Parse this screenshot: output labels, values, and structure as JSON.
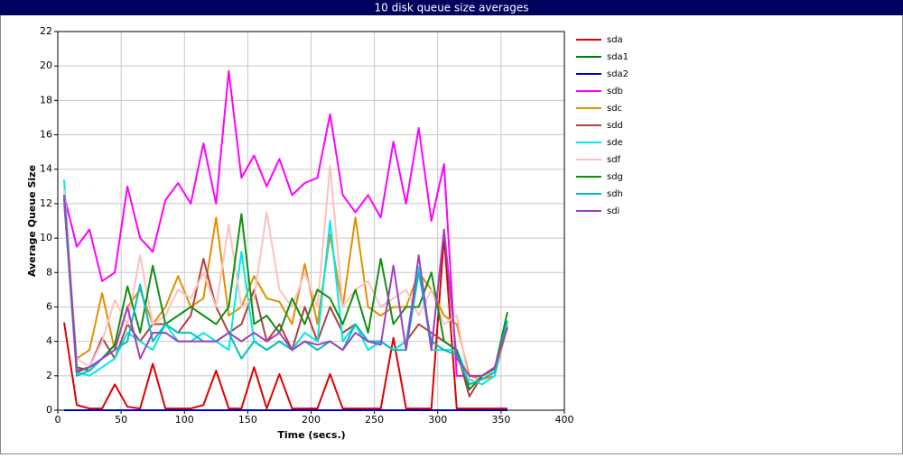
{
  "chart_data": {
    "type": "line",
    "title": "10 disk queue size averages",
    "xlabel": "Time (secs.)",
    "ylabel": "Average Queue Size",
    "x": [
      5,
      15,
      25,
      35,
      45,
      55,
      65,
      75,
      85,
      95,
      105,
      115,
      125,
      135,
      145,
      155,
      165,
      175,
      185,
      195,
      205,
      215,
      225,
      235,
      245,
      255,
      265,
      275,
      285,
      295,
      305,
      315,
      325,
      335,
      345,
      355
    ],
    "xlim": [
      0,
      400
    ],
    "xticks": [
      0,
      50,
      100,
      150,
      200,
      250,
      300,
      350,
      400
    ],
    "ylim": [
      0,
      22
    ],
    "yticks": [
      0,
      2,
      4,
      6,
      8,
      10,
      12,
      14,
      16,
      18,
      20,
      22
    ],
    "grid": true,
    "legend": "right",
    "series": [
      {
        "name": "sda",
        "color": "#dd0000",
        "values": [
          5.1,
          0.3,
          0.1,
          0.1,
          1.5,
          0.2,
          0.1,
          2.7,
          0.1,
          0.1,
          0.1,
          0.3,
          2.3,
          0.1,
          0.1,
          2.5,
          0.1,
          2.1,
          0.1,
          0.1,
          0.1,
          2.1,
          0.1,
          0.1,
          0.1,
          0.1,
          4.2,
          0.1,
          0.1,
          0.1,
          10.1,
          0.1,
          0.1,
          0.1,
          0.1,
          0.1
        ]
      },
      {
        "name": "sda1",
        "color": "#008000",
        "values": [
          0,
          0,
          0,
          0,
          0,
          0,
          0,
          0,
          0,
          0,
          0,
          0,
          0,
          0,
          0,
          0,
          0,
          0,
          0,
          0,
          0,
          0,
          0,
          0,
          0,
          0,
          0,
          0,
          0,
          0,
          0,
          0,
          0,
          0,
          0,
          0
        ]
      },
      {
        "name": "sda2",
        "color": "#0000c0",
        "values": [
          0,
          0,
          0,
          0,
          0,
          0,
          0,
          0,
          0,
          0,
          0,
          0,
          0,
          0,
          0,
          0,
          0,
          0,
          0,
          0,
          0,
          0,
          0,
          0,
          0,
          0,
          0,
          0,
          0,
          0,
          0,
          0,
          0,
          0,
          0,
          0
        ]
      },
      {
        "name": "sdb",
        "color": "#ff00ff",
        "values": [
          12.5,
          9.5,
          10.5,
          7.5,
          8,
          13,
          10,
          9.2,
          12.2,
          13.2,
          12,
          15.5,
          12,
          19.7,
          13.5,
          14.8,
          13,
          14.6,
          12.5,
          13.2,
          13.5,
          17.2,
          12.5,
          11.5,
          12.5,
          11.2,
          15.6,
          12,
          16.4,
          11,
          14.3,
          2,
          2,
          2,
          2.5,
          4.8
        ]
      },
      {
        "name": "sdc",
        "color": "#e09000",
        "values": [
          12,
          3,
          3.5,
          6.8,
          3.5,
          6,
          7,
          5,
          6,
          7.8,
          6,
          6.5,
          11.2,
          5.5,
          6,
          7.8,
          6.5,
          6.3,
          5,
          8.5,
          5,
          10.2,
          6,
          11.2,
          6,
          5.5,
          6,
          6,
          8,
          7,
          5.5,
          5,
          2,
          1.8,
          2,
          4.9
        ]
      },
      {
        "name": "sdd",
        "color": "#b04040",
        "values": [
          12.3,
          2.3,
          2.5,
          4.2,
          3,
          5,
          4,
          5,
          5,
          4.5,
          5.5,
          8.8,
          6,
          4.5,
          5,
          7,
          4,
          5,
          3.5,
          6,
          4,
          6,
          4.5,
          5,
          4,
          4,
          3.5,
          4,
          5,
          4.5,
          4,
          3.5,
          0.8,
          2,
          2.2,
          5
        ]
      },
      {
        "name": "sde",
        "color": "#00e8e8",
        "values": [
          13.4,
          2.2,
          2,
          2.5,
          3,
          4.5,
          4,
          3.5,
          5,
          4,
          4,
          4.5,
          4,
          3.5,
          9.2,
          4,
          3.5,
          4,
          3.5,
          4.5,
          4,
          11,
          4,
          5,
          3.5,
          4,
          3.5,
          4,
          8.3,
          3.5,
          3.5,
          3.5,
          1.8,
          1.5,
          2,
          5.2
        ]
      },
      {
        "name": "sdf",
        "color": "#ffc0c0",
        "values": [
          12.8,
          3,
          2.5,
          4,
          6.4,
          5,
          9,
          5,
          5.5,
          7,
          6.5,
          8,
          6,
          10.8,
          6,
          6.5,
          11.5,
          7,
          6,
          8,
          6,
          14.2,
          6,
          7,
          7.5,
          6,
          6.5,
          7,
          5.5,
          7,
          5,
          5.5,
          1.5,
          2,
          2.2,
          5
        ]
      },
      {
        "name": "sdg",
        "color": "#109010",
        "values": [
          12.5,
          2.5,
          2.3,
          3,
          3.8,
          7.2,
          4.5,
          8.4,
          5,
          5.5,
          6,
          5.5,
          5,
          6,
          11.4,
          5,
          5.5,
          4.5,
          6.5,
          5,
          7,
          6.5,
          5,
          7,
          4.5,
          8.8,
          5,
          6,
          6,
          8,
          4,
          3.5,
          1.2,
          2,
          2.4,
          5.7
        ]
      },
      {
        "name": "sdh",
        "color": "#00c0c0",
        "values": [
          12.2,
          2,
          2.3,
          3,
          3.5,
          4,
          7.3,
          4,
          5,
          4.5,
          4.5,
          4,
          4,
          4.5,
          3,
          4,
          3.5,
          4,
          3.5,
          4,
          3.5,
          4,
          3.5,
          5,
          4,
          4,
          3.5,
          3.5,
          8,
          4,
          3.5,
          3.2,
          1.5,
          1.8,
          2.2,
          5.2
        ]
      },
      {
        "name": "sdi",
        "color": "#a040c0",
        "values": [
          12.5,
          2.2,
          2.5,
          3,
          3.5,
          6,
          3,
          4.5,
          4.5,
          4,
          4,
          4,
          4,
          4.5,
          4,
          4.5,
          4,
          4.5,
          3.5,
          4,
          3.8,
          4,
          3.5,
          4.5,
          4,
          3.8,
          8.4,
          3.5,
          9,
          3.5,
          10.5,
          3,
          2,
          2,
          2.5,
          4.8
        ]
      }
    ]
  }
}
